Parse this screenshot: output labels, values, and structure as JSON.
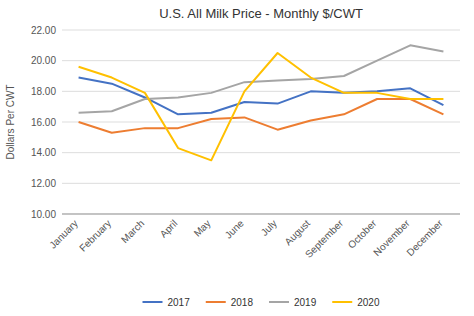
{
  "chart_data": {
    "type": "line",
    "title": "U.S. All Milk Price - Monthly $/CWT",
    "ylabel": "Dollars Per CWT",
    "categories": [
      "January",
      "February",
      "March",
      "April",
      "May",
      "June",
      "July",
      "August",
      "September",
      "October",
      "November",
      "December"
    ],
    "series": [
      {
        "name": "2017",
        "color": "#4472C4",
        "values": [
          18.9,
          18.5,
          17.6,
          16.5,
          16.6,
          17.3,
          17.2,
          18.0,
          17.9,
          18.0,
          18.2,
          17.1
        ]
      },
      {
        "name": "2018",
        "color": "#ED7D31",
        "values": [
          16.0,
          15.3,
          15.6,
          15.6,
          16.2,
          16.3,
          15.5,
          16.1,
          16.5,
          17.5,
          17.5,
          16.5
        ]
      },
      {
        "name": "2019",
        "color": "#A5A5A5",
        "values": [
          16.6,
          16.7,
          17.5,
          17.6,
          17.9,
          18.6,
          18.7,
          18.8,
          19.0,
          20.0,
          21.0,
          20.6
        ]
      },
      {
        "name": "2020",
        "color": "#FFC000",
        "values": [
          19.6,
          18.9,
          17.9,
          14.3,
          13.5,
          18.0,
          20.5,
          18.9,
          17.9,
          17.9,
          17.5,
          17.5
        ]
      }
    ],
    "ylim": [
      10.0,
      22.0
    ],
    "yticks": [
      {
        "value": 10,
        "label": "10.00"
      },
      {
        "value": 12,
        "label": "12.00"
      },
      {
        "value": 14,
        "label": "14.00"
      },
      {
        "value": 16,
        "label": "16.00"
      },
      {
        "value": 18,
        "label": "18.00"
      },
      {
        "value": 20,
        "label": "20.00"
      },
      {
        "value": 22,
        "label": "22.00"
      }
    ],
    "grid": true,
    "legend": "bottom"
  }
}
